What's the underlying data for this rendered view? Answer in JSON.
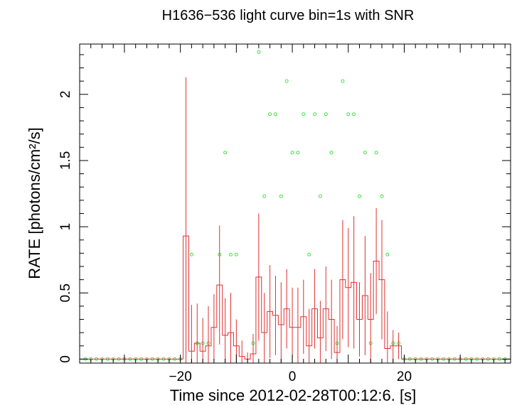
{
  "chart_data": {
    "type": "line",
    "title": "H1636−536 light curve bin=1s with SNR",
    "xlabel": "Time since 2012-02-28T00:12:6. [s]",
    "ylabel": "RATE [photons/cm²/s]",
    "xlim": [
      -38,
      39
    ],
    "ylim": [
      -0.03,
      2.38
    ],
    "x_ticks": [
      -20,
      0,
      20
    ],
    "x_tick_labels": [
      "−20",
      "0",
      "20"
    ],
    "y_ticks": [
      0,
      0.5,
      1,
      1.5,
      2
    ],
    "y_tick_labels": [
      "0",
      "0.5",
      "1",
      "1.5",
      "2"
    ],
    "grid": false,
    "colors": {
      "rate": "#e03030",
      "snr": "#40e040",
      "axes": "#000000"
    },
    "series": [
      {
        "style": "step-with-errorbars",
        "x": [
          -19,
          -18,
          -17,
          -16,
          -15,
          -14,
          -13,
          -12,
          -11,
          -10,
          -9,
          -8,
          -7,
          -6,
          -5,
          -4,
          -3,
          -2,
          -1,
          0,
          1,
          2,
          3,
          4,
          5,
          6,
          7,
          8,
          9,
          10,
          11,
          12,
          13,
          14,
          15,
          16,
          17,
          18,
          19
        ],
        "y": [
          0.93,
          0.06,
          0.12,
          0.06,
          0.1,
          0.24,
          0.56,
          0.18,
          0.2,
          0.1,
          0.02,
          0.0,
          0.04,
          0.62,
          0.2,
          0.36,
          0.33,
          0.26,
          0.38,
          0.24,
          0.24,
          0.32,
          0.1,
          0.38,
          0.16,
          0.38,
          0.3,
          0.05,
          0.6,
          0.54,
          0.58,
          0.3,
          0.48,
          0.3,
          0.74,
          0.6,
          0.08,
          0.1,
          0.1
        ],
        "yerr": [
          1.2,
          0.35,
          0.3,
          0.25,
          0.3,
          0.25,
          0.45,
          0.28,
          0.3,
          0.2,
          0.12,
          0.05,
          0.15,
          0.48,
          0.3,
          0.35,
          0.3,
          0.32,
          0.3,
          0.3,
          0.3,
          0.28,
          0.28,
          0.3,
          0.28,
          0.32,
          0.3,
          0.2,
          0.45,
          0.45,
          0.5,
          0.28,
          0.45,
          0.35,
          0.4,
          0.45,
          0.28,
          0.12,
          0.1
        ]
      },
      {
        "style": "markers",
        "x": [
          -18,
          -17,
          -16,
          -15,
          -13,
          -12,
          -11,
          -10,
          -7,
          -6,
          -5,
          -4,
          -3,
          -2,
          -1,
          0,
          1,
          2,
          3,
          4,
          5,
          6,
          7,
          8,
          9,
          10,
          11,
          12,
          13,
          14,
          15,
          16,
          17,
          18,
          19
        ],
        "y": [
          0.79,
          0.12,
          0.12,
          0.12,
          0.79,
          1.56,
          0.79,
          0.79,
          0.12,
          2.32,
          1.23,
          1.85,
          1.85,
          1.23,
          2.1,
          1.56,
          1.56,
          1.85,
          0.79,
          1.85,
          1.23,
          1.85,
          1.56,
          0.12,
          2.1,
          1.85,
          1.85,
          1.23,
          1.56,
          0.12,
          1.56,
          1.23,
          0.79,
          0.12,
          0.12
        ]
      }
    ]
  }
}
